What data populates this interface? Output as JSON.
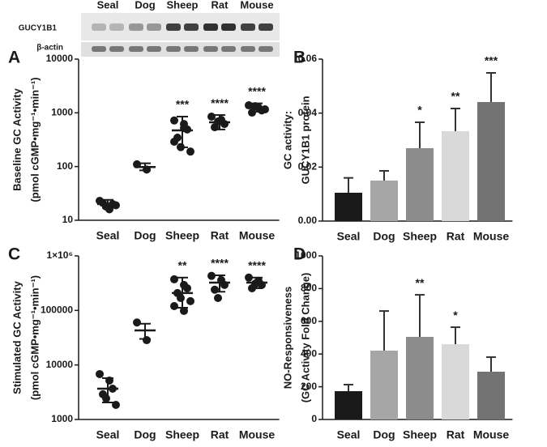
{
  "blot": {
    "lanes": [
      "Seal",
      "Dog",
      "Sheep",
      "Rat",
      "Mouse"
    ],
    "rows": [
      "GUCY1B1",
      "β-actin"
    ]
  },
  "chart_data": [
    {
      "type": "scatter",
      "panel_label": "A",
      "ylabel": [
        "Baseline GC Activity",
        "(pmol cGMP•mg⁻¹•min⁻¹)"
      ],
      "log_scale": true,
      "ylim": [
        10,
        10000
      ],
      "yticks": [
        10,
        100,
        1000,
        10000
      ],
      "color": "#1a1a1a",
      "categories": [
        "Seal",
        "Dog",
        "Sheep",
        "Rat",
        "Mouse"
      ],
      "points": [
        [
          23,
          16,
          20,
          21,
          18,
          19
        ],
        [
          110,
          88
        ],
        [
          720,
          620,
          490,
          345,
          230,
          190,
          290,
          520
        ],
        [
          850,
          740,
          620,
          540,
          690
        ],
        [
          1380,
          1250,
          1110,
          1010,
          1330,
          1160
        ]
      ],
      "means": [
        20,
        98,
        472,
        668,
        1250
      ],
      "error_low": [
        17,
        85,
        228,
        490,
        1050
      ],
      "error_high": [
        24,
        115,
        850,
        910,
        1500
      ],
      "annotations": [
        null,
        null,
        "***",
        "****",
        "****"
      ]
    },
    {
      "type": "bar",
      "panel_label": "B",
      "ylabel": [
        "GC activity:",
        "GUCY1B1 protein"
      ],
      "ylim": [
        0,
        0.06
      ],
      "yticks": [
        {
          "value": 0,
          "label": "0.00"
        },
        {
          "value": 0.02,
          "label": "0.02"
        },
        {
          "value": 0.04,
          "label": "0.04"
        },
        {
          "value": 0.06,
          "label": "0.06"
        }
      ],
      "categories": [
        "Seal",
        "Dog",
        "Sheep",
        "Rat",
        "Mouse"
      ],
      "colors": [
        "#1a1a1a",
        "#a6a6a6",
        "#8c8c8c",
        "#d9d9d9",
        "#737373"
      ],
      "values": [
        0.0105,
        0.015,
        0.027,
        0.0333,
        0.0441
      ],
      "error_high": [
        0.016,
        0.0186,
        0.0366,
        0.0417,
        0.0549
      ],
      "annotations": [
        null,
        null,
        "*",
        "**",
        "***"
      ]
    },
    {
      "type": "scatter",
      "panel_label": "C",
      "ylabel": [
        "Stimulated GC Activity",
        "(pmol cGMP•mg⁻¹•min⁻¹)"
      ],
      "log_scale": true,
      "ylim": [
        1000,
        1000000
      ],
      "yticks": [
        1000,
        10000,
        100000,
        {
          "value": 1000000,
          "label": "1×10⁶"
        }
      ],
      "color": "#1a1a1a",
      "categories": [
        "Seal",
        "Dog",
        "Sheep",
        "Rat",
        "Mouse"
      ],
      "points": [
        [
          6800,
          5170,
          3670,
          2900,
          2430,
          1850
        ],
        [
          60000,
          28500
        ],
        [
          372000,
          293000,
          255000,
          208000,
          169000,
          148000,
          120000,
          98000
        ],
        [
          430000,
          360000,
          293000,
          240000,
          169000
        ],
        [
          400000,
          350000,
          293000,
          255000,
          310000
        ]
      ],
      "means": [
        3670,
        43000,
        208000,
        324000,
        324000
      ],
      "error_low": [
        2050,
        30000,
        112000,
        220000,
        255000
      ],
      "error_high": [
        5730,
        57000,
        400000,
        440000,
        400000
      ],
      "annotations": [
        null,
        null,
        "**",
        "****",
        "****"
      ]
    },
    {
      "type": "bar",
      "panel_label": "D",
      "ylabel": [
        "NO-Responsiveness",
        "(GC Activity Fold Change)"
      ],
      "ylim": [
        0,
        1000
      ],
      "yticks": [
        0,
        200,
        400,
        600,
        800,
        1000
      ],
      "categories": [
        "Seal",
        "Dog",
        "Sheep",
        "Rat",
        "Mouse"
      ],
      "colors": [
        "#1a1a1a",
        "#a6a6a6",
        "#8c8c8c",
        "#d9d9d9",
        "#737373"
      ],
      "values": [
        173,
        421,
        505,
        460,
        292
      ],
      "error_high": [
        213,
        663,
        762,
        564,
        381
      ],
      "annotations": [
        null,
        null,
        "**",
        "*",
        null
      ]
    }
  ]
}
